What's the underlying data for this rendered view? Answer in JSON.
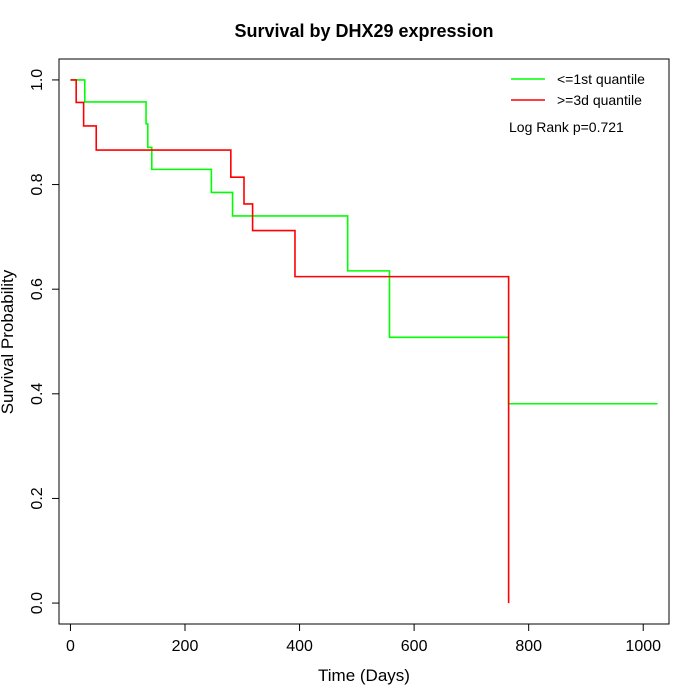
{
  "chart_data": {
    "type": "line",
    "title": "Survival by DHX29 expression",
    "xlabel": "Time (Days)",
    "ylabel": "Survival Probability",
    "xlim": [
      -20,
      1045
    ],
    "ylim": [
      -0.04,
      1.04
    ],
    "x_ticks": [
      0,
      200,
      400,
      600,
      800,
      1000
    ],
    "y_ticks": [
      0.0,
      0.2,
      0.4,
      0.6,
      0.8,
      1.0
    ],
    "x_tick_labels": [
      "0",
      "200",
      "400",
      "600",
      "800",
      "1000"
    ],
    "y_tick_labels": [
      "0.0",
      "0.2",
      "0.4",
      "0.6",
      "0.8",
      "1.0"
    ],
    "grid": false,
    "legend_position": "top-right",
    "annotation": "Log Rank p=0.721",
    "series": [
      {
        "name": "<=1st quantile",
        "color": "#00ff00",
        "x": [
          0,
          25,
          132,
          135,
          142,
          246,
          283,
          484,
          557,
          765,
          1025
        ],
        "y": [
          1.0,
          0.958,
          0.916,
          0.871,
          0.829,
          0.785,
          0.74,
          0.635,
          0.508,
          0.381,
          0.381
        ]
      },
      {
        "name": ">=3d quantile",
        "color": "#ff0000",
        "x": [
          0,
          10,
          23,
          45,
          280,
          303,
          318,
          392,
          765
        ],
        "y": [
          1.0,
          0.957,
          0.912,
          0.866,
          0.814,
          0.763,
          0.712,
          0.624,
          0.0
        ]
      }
    ]
  }
}
